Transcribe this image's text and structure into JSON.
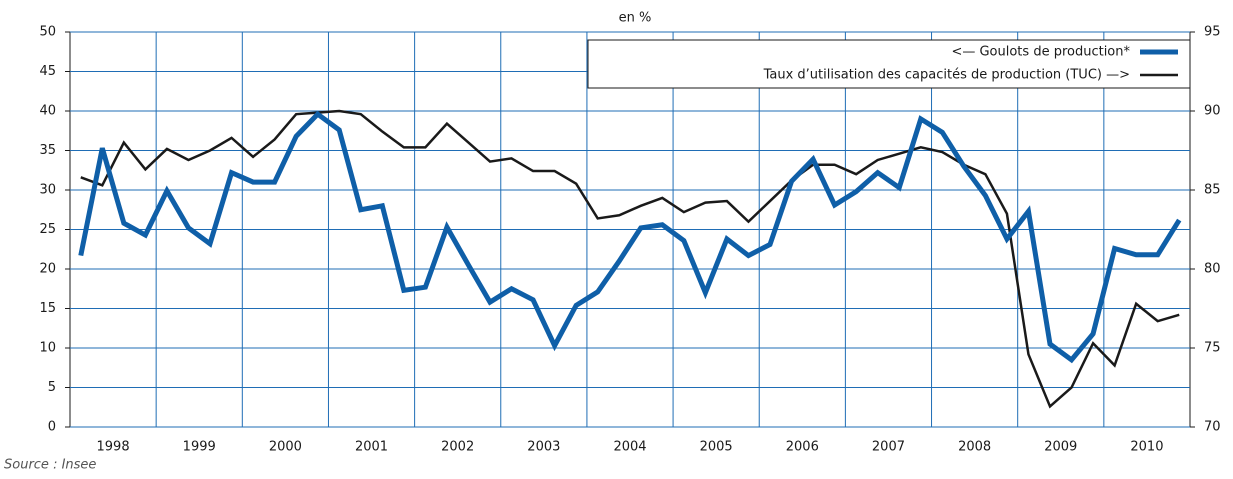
{
  "chart_data": {
    "type": "line",
    "subtitle": "en %",
    "source": "Source : Insee",
    "categories": [
      null,
      "1998",
      null,
      null,
      null,
      "1999",
      null,
      null,
      null,
      "2000",
      null,
      null,
      null,
      "2001",
      null,
      null,
      null,
      "2002",
      null,
      null,
      null,
      "2003",
      null,
      null,
      null,
      "2004",
      null,
      null,
      null,
      "2005",
      null,
      null,
      null,
      "2006",
      null,
      null,
      null,
      "2007",
      null,
      null,
      null,
      "2008",
      null,
      null,
      null,
      "2009",
      null,
      null,
      null,
      "2010",
      null,
      null
    ],
    "series": [
      {
        "name": "<— Goulots de production*",
        "color": "#0f5fa8",
        "values": [
          21.7,
          35.3,
          25.8,
          24.3,
          29.9,
          25.2,
          23.2,
          32.2,
          31,
          31,
          36.8,
          39.6,
          37.6,
          27.5,
          28,
          17.3,
          17.7,
          25.3,
          20.5,
          15.8,
          17.5,
          16.1,
          10.3,
          15.4,
          17.1,
          21,
          25.2,
          25.6,
          23.6,
          17,
          23.8,
          21.7,
          23.1,
          31.1,
          33.9,
          28.1,
          29.8,
          32.2,
          30.3,
          39,
          37.3,
          33,
          29.3,
          23.8,
          27.3,
          10.5,
          8.5,
          11.8,
          22.6,
          21.8,
          21.8,
          26.2
        ]
      },
      {
        "name": "Taux d’utilisation des capacités de production (TUC) —>",
        "color": "#1a1a1a",
        "axis": "y2",
        "values": [
          85.8,
          85.3,
          88,
          86.3,
          87.6,
          86.9,
          87.5,
          88.3,
          87.1,
          88.2,
          89.8,
          89.9,
          90,
          89.8,
          88.7,
          87.7,
          87.7,
          89.2,
          88,
          86.8,
          87,
          86.2,
          86.2,
          85.4,
          83.2,
          83.4,
          84,
          84.5,
          83.6,
          84.2,
          84.3,
          83,
          84.3,
          85.6,
          86.6,
          86.6,
          86,
          86.9,
          87.3,
          87.7,
          87.4,
          86.6,
          86,
          83.5,
          74.6,
          71.3,
          72.5,
          75.3,
          73.9,
          77.8,
          76.7,
          77.1
        ]
      }
    ],
    "ylim": [
      0,
      50
    ],
    "yticks": [
      0,
      5,
      10,
      15,
      20,
      25,
      30,
      35,
      40,
      45,
      50
    ],
    "y2lim": [
      70,
      95
    ],
    "y2ticks": [
      70,
      75,
      80,
      85,
      90,
      95
    ],
    "grid": true,
    "legend": "top-right"
  }
}
